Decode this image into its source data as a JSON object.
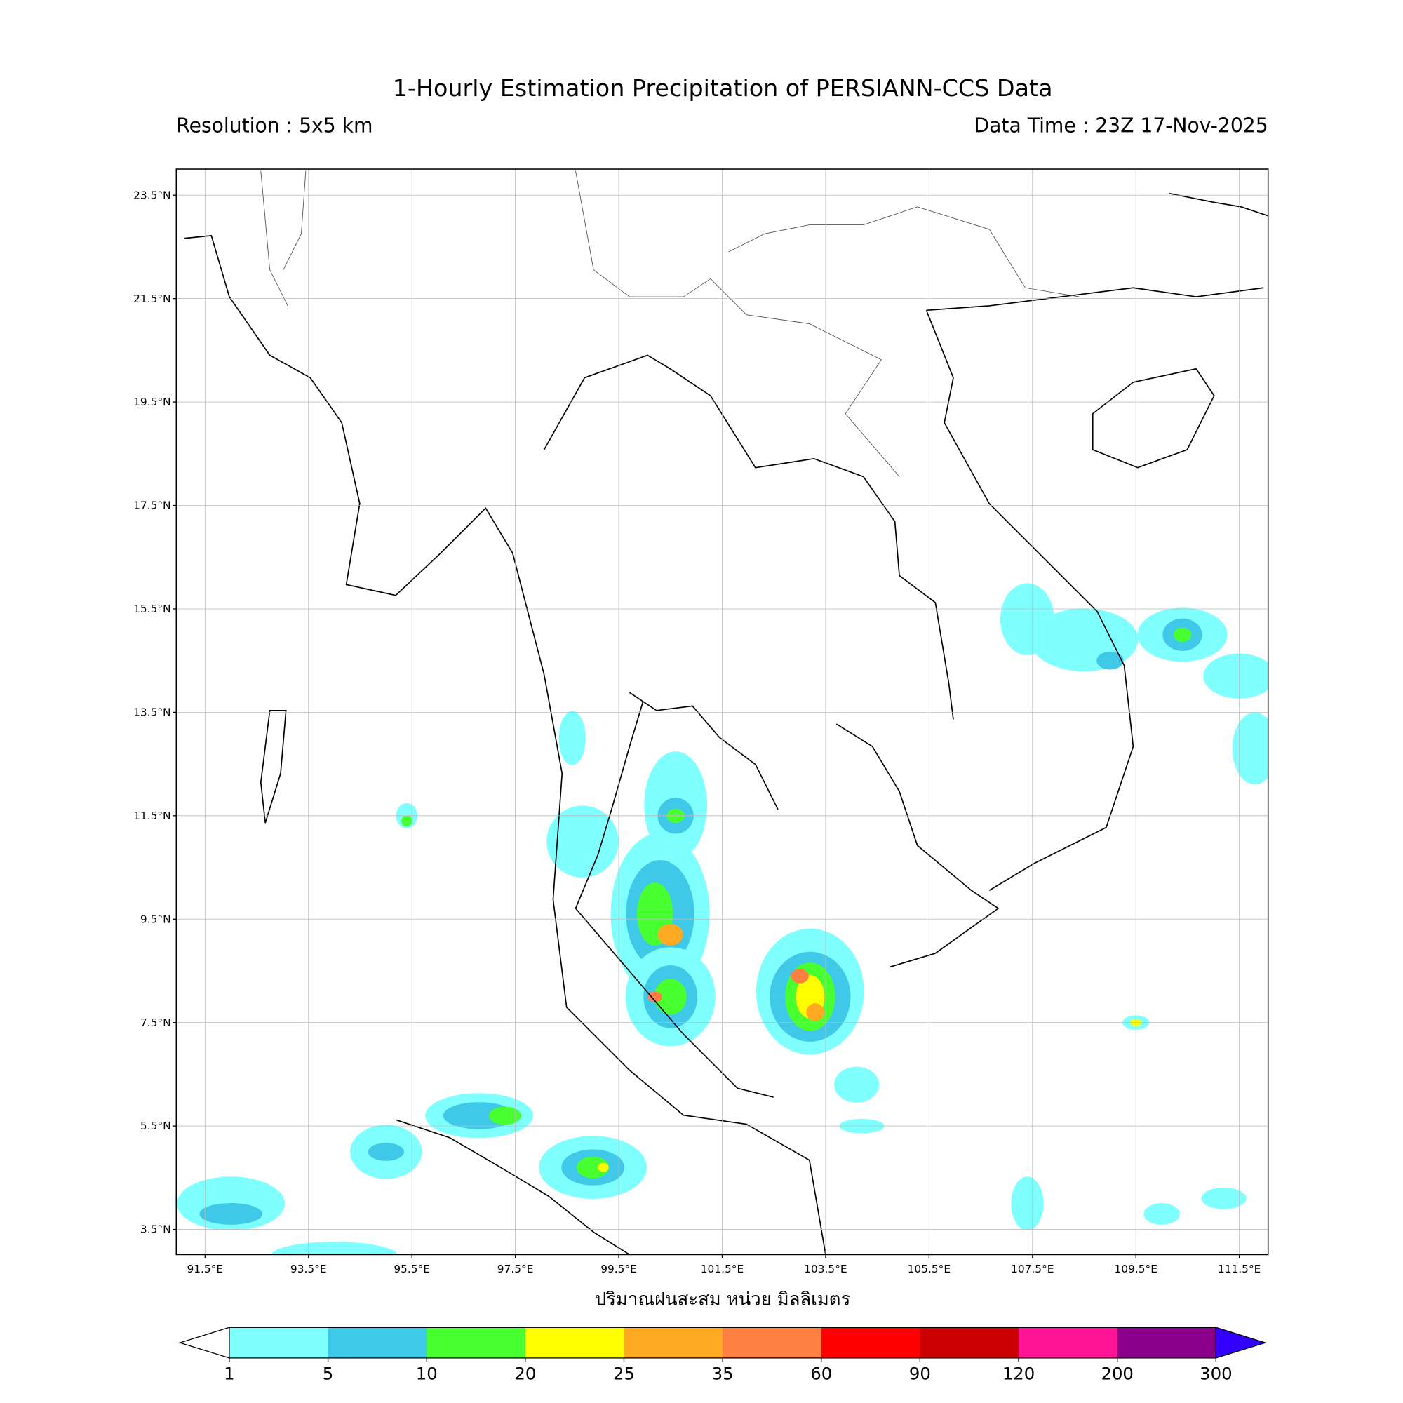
{
  "title": "1-Hourly Estimation Precipitation of PERSIANN-CCS Data",
  "resolution": "Resolution : 5x5 km",
  "data_time": "Data Time : 23Z 17-Nov-2025",
  "xlabel": "ปริมาณฝนสะสม หน่วย มิลลิเมตร",
  "map": {
    "lat_ticks": [
      "23.5°N",
      "21.5°N",
      "19.5°N",
      "17.5°N",
      "15.5°N",
      "13.5°N",
      "11.5°N",
      "9.5°N",
      "7.5°N",
      "5.5°N",
      "3.5°N"
    ],
    "lon_ticks": [
      "91.5°E",
      "93.5°E",
      "95.5°E",
      "97.5°E",
      "99.5°E",
      "101.5°E",
      "103.5°E",
      "105.5°E",
      "107.5°E",
      "109.5°E",
      "111.5°E"
    ],
    "lat_range": [
      3.0,
      24.0
    ],
    "lon_range": [
      91.0,
      112.0
    ],
    "grid": true
  },
  "colorbar": {
    "labels": [
      "1",
      "5",
      "10",
      "20",
      "25",
      "35",
      "60",
      "90",
      "120",
      "200",
      "300"
    ],
    "colors": [
      "#80ffff",
      "#40c8e8",
      "#48ff30",
      "#ffff00",
      "#ffaa20",
      "#ff8040",
      "#ff0000",
      "#cc0000",
      "#ff1493",
      "#8b008b"
    ],
    "under_color": "#ffffff",
    "over_color": "#3300ff",
    "extend": "both"
  }
}
